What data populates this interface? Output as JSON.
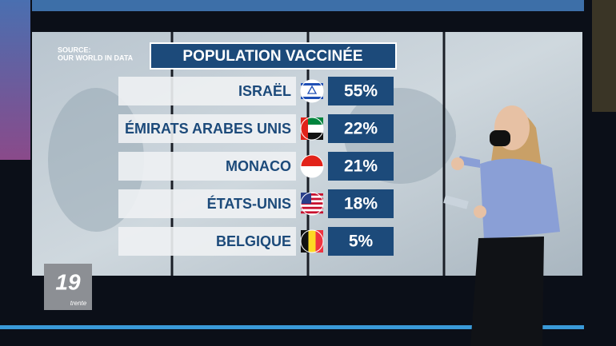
{
  "source": {
    "line1": "SOURCE:",
    "line2": "OUR WORLD IN DATA"
  },
  "title": "POPULATION VACCINÉE",
  "rows": [
    {
      "label": "ISRAËL",
      "value": "55%"
    },
    {
      "label": "ÉMIRATS ARABES UNIS",
      "value": "22%"
    },
    {
      "label": "MONACO",
      "value": "21%"
    },
    {
      "label": "ÉTATS-UNIS",
      "value": "18%"
    },
    {
      "label": "BELGIQUE",
      "value": "5%"
    }
  ],
  "logo": {
    "number": "19",
    "word": "trente"
  }
}
